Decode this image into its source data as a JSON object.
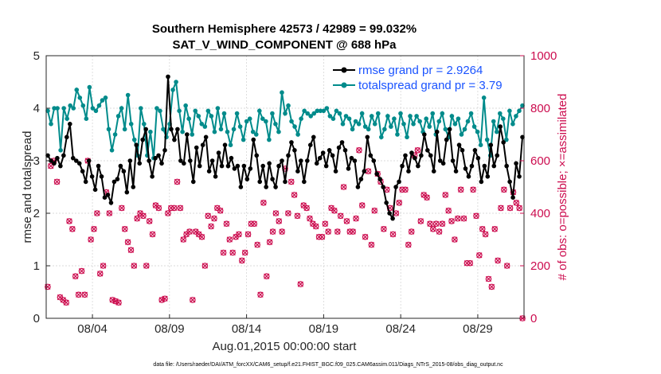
{
  "chart_data": {
    "type": "line",
    "title_line1": "Southern Hemisphere 42573 / 42989 = 99.032%",
    "title_line2": "SAT_V_WIND_COMPONENT @ 688 hPa",
    "xlabel": "Aug.01,2015 00:00:00 start",
    "ylabel_left": "rmse and totalspread",
    "ylabel_right": "# of obs: o=possible; ×=assimilated",
    "footer": "data file: /Users/raeder/DAI/ATM_forcXX/CAM6_setup/f.e21.FHIST_BGC.f09_025.CAM6assim.011/Diags_NTrS_2015-08/obs_diag_output.nc",
    "x_tick_labels": [
      "08/04",
      "08/09",
      "08/14",
      "08/19",
      "08/24",
      "08/29"
    ],
    "x_tick_days": [
      4,
      9,
      14,
      19,
      24,
      29
    ],
    "xlim": [
      1,
      32
    ],
    "ylim_left": [
      0,
      5
    ],
    "yticks_left": [
      "0",
      "1",
      "2",
      "3",
      "4",
      "5"
    ],
    "ylim_right": [
      0,
      1000
    ],
    "yticks_right": [
      "0",
      "200",
      "400",
      "600",
      "800",
      "1000"
    ],
    "grid": true,
    "legend_position": "top-right",
    "colors": {
      "rmse": "#000000",
      "spread": "#008b8b",
      "obs": "#cc0d4f",
      "legend_text": "#1a53ff"
    },
    "series": [
      {
        "name": "rmse grand pr = 2.9264",
        "axis": "left",
        "values": [
          3.1,
          3.0,
          2.95,
          3.05,
          2.9,
          3.1,
          3.45,
          3.7,
          3.05,
          3.0,
          2.95,
          2.8,
          2.6,
          3.0,
          2.7,
          2.45,
          2.9,
          2.7,
          2.3,
          2.35,
          2.2,
          2.6,
          2.65,
          2.9,
          2.8,
          2.4,
          3.0,
          2.5,
          3.3,
          2.95,
          3.4,
          3.6,
          3.0,
          2.7,
          3.05,
          3.1,
          2.95,
          3.2,
          4.6,
          3.6,
          3.4,
          3.6,
          3.0,
          2.95,
          3.5,
          3.0,
          2.6,
          3.25,
          2.9,
          3.3,
          3.45,
          2.8,
          3.0,
          2.7,
          3.15,
          2.9,
          3.3,
          2.9,
          3.05,
          2.85,
          2.9,
          2.5,
          2.9,
          2.65,
          2.85,
          3.4,
          3.1,
          2.6,
          2.9,
          2.5,
          2.95,
          2.65,
          2.5,
          2.9,
          3.0,
          2.6,
          3.1,
          3.35,
          3.2,
          2.8,
          3.0,
          2.6,
          3.0,
          3.3,
          3.45,
          2.95,
          3.05,
          3.15,
          2.9,
          3.2,
          3.1,
          2.8,
          3.25,
          3.35,
          3.2,
          2.85,
          3.05,
          3.0,
          2.5,
          2.65,
          2.8,
          3.45,
          3.1,
          3.0,
          2.75,
          2.65,
          2.5,
          2.2,
          2.0,
          1.9,
          2.5,
          2.6,
          2.9,
          3.1,
          2.8,
          3.15,
          3.05,
          2.9,
          3.1,
          3.5,
          3.2,
          3.1,
          2.8,
          3.55,
          3.0,
          2.95,
          3.4,
          3.6,
          3.0,
          2.8,
          3.3,
          3.2,
          2.85,
          2.7,
          2.9,
          3.2,
          3.05,
          2.6,
          2.9,
          2.7,
          3.3,
          2.9,
          3.1,
          3.65,
          3.35,
          2.9,
          2.6,
          2.3,
          2.95,
          2.7,
          3.45
        ]
      },
      {
        "name": "totalspread grand pr = 3.79",
        "axis": "left",
        "values": [
          3.95,
          3.7,
          4.0,
          4.0,
          3.2,
          4.0,
          3.8,
          4.05,
          4.0,
          4.35,
          4.2,
          4.05,
          3.8,
          4.4,
          4.0,
          3.95,
          4.05,
          4.15,
          4.2,
          3.6,
          3.2,
          3.5,
          3.85,
          4.0,
          3.6,
          4.25,
          3.7,
          3.4,
          3.1,
          4.0,
          3.7,
          3.1,
          3.55,
          3.05,
          4.0,
          3.95,
          3.6,
          3.45,
          3.7,
          4.35,
          4.5,
          3.95,
          3.55,
          4.05,
          3.8,
          3.5,
          3.95,
          3.85,
          3.7,
          3.65,
          3.95,
          3.85,
          3.55,
          4.0,
          3.6,
          3.9,
          3.55,
          3.3,
          3.6,
          3.9,
          3.65,
          3.4,
          3.75,
          3.8,
          3.55,
          3.5,
          3.95,
          3.8,
          3.75,
          3.4,
          3.9,
          3.7,
          3.55,
          4.3,
          3.9,
          4.05,
          3.75,
          3.65,
          3.5,
          3.8,
          3.95,
          3.9,
          3.85,
          3.9,
          3.95,
          3.95,
          3.95,
          4.0,
          3.85,
          3.8,
          3.95,
          3.9,
          3.7,
          3.85,
          3.8,
          3.6,
          3.75,
          3.7,
          3.9,
          3.65,
          3.6,
          3.85,
          3.7,
          3.9,
          3.45,
          3.6,
          3.85,
          3.65,
          3.8,
          3.5,
          3.9,
          3.7,
          3.45,
          3.85,
          3.7,
          3.85,
          3.75,
          3.55,
          3.8,
          3.65,
          3.9,
          3.5,
          3.75,
          3.9,
          3.6,
          3.45,
          3.85,
          3.7,
          3.8,
          3.5,
          3.6,
          3.75,
          3.9,
          3.65,
          3.55,
          3.3,
          4.2,
          3.4,
          3.1,
          3.75,
          3.55,
          3.9,
          3.8,
          3.4,
          3.95,
          3.7,
          3.85,
          3.95,
          4.05
        ]
      },
      {
        "name": "obs possible/assimilated",
        "axis": "right",
        "values": [
          120,
          580,
          600,
          520,
          80,
          70,
          60,
          370,
          340,
          160,
          90,
          180,
          90,
          600,
          300,
          340,
          400,
          170,
          200,
          480,
          400,
          70,
          65,
          60,
          420,
          340,
          290,
          260,
          200,
          380,
          400,
          390,
          200,
          370,
          320,
          430,
          420,
          70,
          75,
          400,
          420,
          420,
          520,
          420,
          300,
          320,
          330,
          70,
          330,
          320,
          310,
          200,
          390,
          350,
          380,
          420,
          410,
          250,
          360,
          300,
          250,
          310,
          320,
          220,
          250,
          320,
          360,
          360,
          280,
          90,
          440,
          160,
          290,
          330,
          400,
          370,
          330,
          570,
          400,
          520,
          470,
          390,
          130,
          430,
          420,
          380,
          360,
          350,
          310,
          310,
          360,
          330,
          420,
          410,
          330,
          390,
          500,
          370,
          330,
          330,
          380,
          640,
          430,
          310,
          560,
          280,
          410,
          550,
          520,
          340,
          490,
          420,
          320,
          400,
          440,
          490,
          490,
          280,
          330,
          620,
          640,
          370,
          470,
          460,
          360,
          340,
          360,
          330,
          360,
          470,
          410,
          370,
          300,
          380,
          490,
          380,
          210,
          210,
          490,
          390,
          240,
          340,
          320,
          150,
          120,
          340,
          220,
          420,
          490,
          200,
          420,
          480,
          440,
          420,
          0
        ]
      }
    ]
  }
}
